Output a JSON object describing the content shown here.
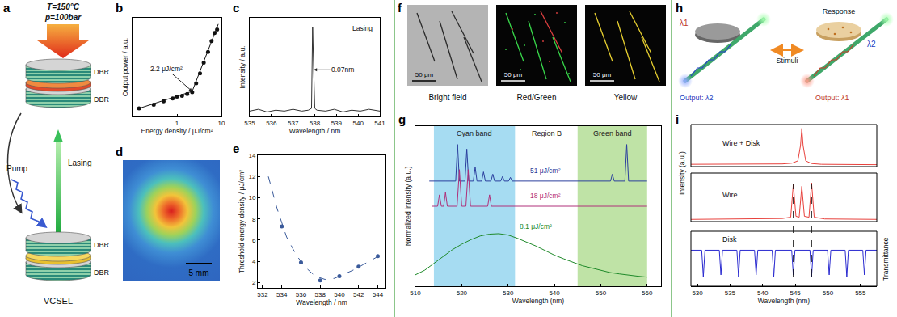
{
  "panels": {
    "a": {
      "letter": "a",
      "conditions": [
        "T=150°C",
        "p=100bar"
      ],
      "mirrors": [
        "DBR",
        "DBR",
        "DBR",
        "DBR"
      ],
      "pump": "Pump",
      "output": "Lasing",
      "device": "VCSEL"
    },
    "d": {
      "letter": "d",
      "scale_bar": "5 mm"
    },
    "f": {
      "letter": "f",
      "images": [
        {
          "caption": "Bright field",
          "scale_bar": "50 μm"
        },
        {
          "caption": "Red/Green",
          "scale_bar": "50 μm"
        },
        {
          "caption": "Yellow",
          "scale_bar": "50 μm"
        }
      ]
    },
    "h": {
      "letter": "h",
      "response": "Response",
      "stimuli": "Stimuli",
      "inputs": [
        "λ1",
        "λ2"
      ],
      "outputs": [
        "Output: λ2",
        "Output: λ1"
      ]
    }
  },
  "chart_data": [
    {
      "letter": "b",
      "type": "scatter",
      "x_label": "Energy density / μJ/cm²",
      "y_label": "Output power / a.u.",
      "log": "x",
      "xlim": [
        0.1,
        10
      ],
      "xticks": [
        1,
        10
      ],
      "ylim": [
        0,
        110
      ],
      "tick_labels": "x",
      "series": [
        {
          "marker": "circle",
          "color": "#111111",
          "x": [
            0.14,
            0.3,
            0.5,
            0.8,
            1.0,
            1.3,
            1.7,
            2.2,
            2.7,
            3.3,
            4,
            5,
            6,
            7,
            8
          ],
          "values": [
            9,
            13,
            17,
            20,
            22,
            23,
            25,
            27,
            37,
            48,
            60,
            72,
            84,
            93,
            97
          ]
        },
        {
          "type": "line",
          "color": "#111111",
          "x": [
            0.14,
            2.2
          ],
          "values": [
            9,
            28
          ]
        },
        {
          "type": "line",
          "color": "#111111",
          "x": [
            2.2,
            8.5
          ],
          "values": [
            28,
            103
          ]
        }
      ],
      "annotations": [
        {
          "text": "2.2 μJ/cm²",
          "x": 2.2,
          "y": 28,
          "arrow": true
        }
      ]
    },
    {
      "letter": "c",
      "type": "line",
      "x_label": "Wavelength / nm",
      "y_label": "Intensity / a.u.",
      "xlim": [
        535,
        541
      ],
      "xticks": [
        535,
        536,
        537,
        538,
        539,
        540,
        541
      ],
      "ylim": [
        0,
        110
      ],
      "tick_labels": "x",
      "series": [
        {
          "color": "#333333",
          "x": [
            535,
            535.4,
            535.8,
            536.2,
            536.6,
            537,
            537.4,
            537.7,
            537.85,
            537.9,
            537.95,
            538.0,
            538.1,
            538.5,
            538.9,
            539.3,
            539.7,
            540.1,
            540.5,
            541
          ],
          "values": [
            6,
            8,
            5,
            7,
            6,
            8,
            6,
            7,
            9,
            100,
            52,
            9,
            7,
            6,
            8,
            5,
            7,
            6,
            8,
            6
          ]
        }
      ],
      "annotations": [
        {
          "text": "Lasing",
          "x": 540.2,
          "y": 98
        },
        {
          "text": "0.07nm",
          "x": 537.95,
          "y": 52,
          "arrow": true
        }
      ]
    },
    {
      "letter": "e",
      "type": "scatter",
      "x_label": "Wavelength / nm",
      "y_label": "Threshold energy density / μJ/cm²",
      "xlim": [
        531.5,
        544.8
      ],
      "xticks": [
        532,
        534,
        536,
        538,
        540,
        542,
        544
      ],
      "ylim": [
        1.5,
        14
      ],
      "yticks": [
        2,
        4,
        6,
        8,
        10,
        12,
        14
      ],
      "series": [
        {
          "type": "line",
          "line_style": "dashed",
          "color": "#3a5a9a",
          "x": [
            532.6,
            533.5,
            534.5,
            535.5,
            536.5,
            537.5,
            538.5,
            539.5,
            540.5,
            541.5,
            542.5,
            543.5,
            544.5
          ],
          "values": [
            12,
            9,
            6.3,
            4.6,
            3.4,
            2.6,
            2.3,
            2.4,
            2.8,
            3.2,
            3.7,
            4.2,
            4.7
          ]
        },
        {
          "marker": "circle",
          "color": "#3a5a9a",
          "x": [
            534,
            536,
            538,
            540,
            542,
            544
          ],
          "values": [
            7.3,
            3.9,
            2.2,
            2.6,
            3.5,
            4.5
          ]
        }
      ]
    },
    {
      "letter": "g",
      "type": "line",
      "x_label": "Wavelength (nm)",
      "y_label": "Normalized intensity (a.u.)",
      "xlim": [
        510,
        563
      ],
      "xticks": [
        510,
        520,
        530,
        540,
        550,
        560
      ],
      "ylim": [
        0,
        3.5
      ],
      "tick_labels": "x",
      "bands": [
        {
          "label": "Cyan band",
          "from": 514,
          "to": 531.5,
          "color": "#a6dcf2"
        },
        {
          "label": "Region B",
          "from": 531.5,
          "to": 545
        },
        {
          "label": "Green band",
          "from": 545,
          "to": 560,
          "color": "#bfe3a6"
        }
      ],
      "series": [
        {
          "color": "#2b3f9e",
          "x": [
            513,
            518.7,
            519.1,
            519.5,
            520.7,
            521.1,
            521.5,
            522.5,
            522.9,
            523.3,
            524.3,
            524.7,
            525.1,
            526.3,
            526.7,
            527.1,
            528.4,
            528.8,
            529.2,
            530.1,
            530.5,
            530.9,
            552.1,
            552.5,
            552.9,
            555.2,
            555.6,
            556.0,
            560
          ],
          "values": [
            2.3,
            2.3,
            3.1,
            2.3,
            2.3,
            3.0,
            2.3,
            2.3,
            2.6,
            2.3,
            2.3,
            2.5,
            2.3,
            2.3,
            2.45,
            2.3,
            2.3,
            2.4,
            2.3,
            2.3,
            2.38,
            2.3,
            2.3,
            2.45,
            2.3,
            2.3,
            3.1,
            2.3,
            2.3
          ]
        },
        {
          "color": "#b0307a",
          "x": [
            513.5,
            514.8,
            515.2,
            515.6,
            516.1,
            516.5,
            516.9,
            519.0,
            519.5,
            520.0,
            520.9,
            521.4,
            521.9,
            525.6,
            526.0,
            526.4,
            560
          ],
          "values": [
            1.75,
            1.75,
            2.0,
            1.75,
            1.75,
            2.05,
            1.75,
            1.75,
            2.55,
            1.75,
            1.75,
            2.55,
            1.75,
            1.75,
            2.0,
            1.75,
            1.75
          ]
        },
        {
          "color": "#1f8a2a",
          "x": [
            510,
            512,
            514,
            516,
            518,
            520,
            522,
            524,
            526,
            528,
            530,
            532,
            534,
            536,
            538,
            540,
            542,
            544,
            546,
            548,
            550,
            552,
            554,
            556,
            558,
            560
          ],
          "values": [
            0.25,
            0.35,
            0.5,
            0.65,
            0.8,
            0.92,
            1.02,
            1.1,
            1.14,
            1.15,
            1.12,
            1.05,
            0.97,
            0.88,
            0.78,
            0.68,
            0.6,
            0.52,
            0.45,
            0.4,
            0.35,
            0.3,
            0.27,
            0.24,
            0.22,
            0.2
          ]
        }
      ],
      "annotations": [
        {
          "text": "51 μJ/cm²",
          "x": 538,
          "y": 2.52,
          "color": "#2b3f9e"
        },
        {
          "text": "18 μJ/cm²",
          "x": 538,
          "y": 1.98,
          "color": "#b0307a"
        },
        {
          "text": "8.1 μJ/cm²",
          "x": 536,
          "y": 1.3,
          "color": "#1f8a2a"
        }
      ]
    },
    {
      "letter": "i",
      "type": "line",
      "x_label": "Wavelength (nm)",
      "y_label": "Intensity (a.u.)",
      "y2_label": "Transmittance",
      "xlim": [
        529,
        557.5
      ],
      "xticks": [
        530,
        535,
        540,
        545,
        550,
        555
      ],
      "tick_labels": "x",
      "dashed_lines_x": [
        544.7,
        547.5
      ],
      "series": [
        {
          "label": "Wire + Disk",
          "color": "#e8413c",
          "ylim": [
            0,
            1.1
          ],
          "x": [
            529,
            543,
            544.5,
            545.4,
            545.8,
            546.0,
            546.2,
            546.6,
            547.5,
            549,
            557.5
          ],
          "values": [
            0.06,
            0.07,
            0.09,
            0.15,
            0.55,
            1.0,
            0.55,
            0.15,
            0.08,
            0.06,
            0.05
          ]
        },
        {
          "label": "Wire",
          "color": "#e8413c",
          "ylim": [
            0,
            1.1
          ],
          "x": [
            529,
            543,
            544.3,
            544.7,
            545.1,
            545.6,
            546.0,
            546.4,
            547.1,
            547.5,
            547.9,
            549.5,
            557.5
          ],
          "values": [
            0.05,
            0.07,
            0.1,
            0.85,
            0.12,
            0.1,
            0.8,
            0.12,
            0.1,
            0.88,
            0.1,
            0.06,
            0.05
          ]
        },
        {
          "label": "Disk",
          "axis": "y2",
          "color": "#2a2ad0",
          "ylim": [
            0,
            1.45
          ],
          "x": [
            529,
            530.65,
            530.9,
            531.15,
            533.35,
            533.6,
            533.85,
            536.05,
            536.3,
            536.55,
            538.75,
            539.0,
            539.25,
            541.45,
            541.7,
            541.95,
            544.45,
            544.7,
            544.95,
            547.25,
            547.5,
            547.75,
            549.95,
            550.2,
            550.45,
            552.65,
            552.9,
            553.15,
            555.35,
            555.6,
            555.85,
            557.5
          ],
          "values": [
            0.95,
            0.95,
            0.25,
            0.95,
            0.95,
            0.3,
            0.95,
            0.95,
            0.25,
            0.95,
            0.95,
            0.3,
            0.95,
            0.95,
            0.25,
            0.95,
            0.95,
            0.3,
            0.95,
            0.95,
            0.25,
            0.95,
            0.95,
            0.3,
            0.95,
            0.95,
            0.25,
            0.95,
            0.95,
            0.3,
            0.95,
            0.95
          ]
        }
      ]
    }
  ]
}
